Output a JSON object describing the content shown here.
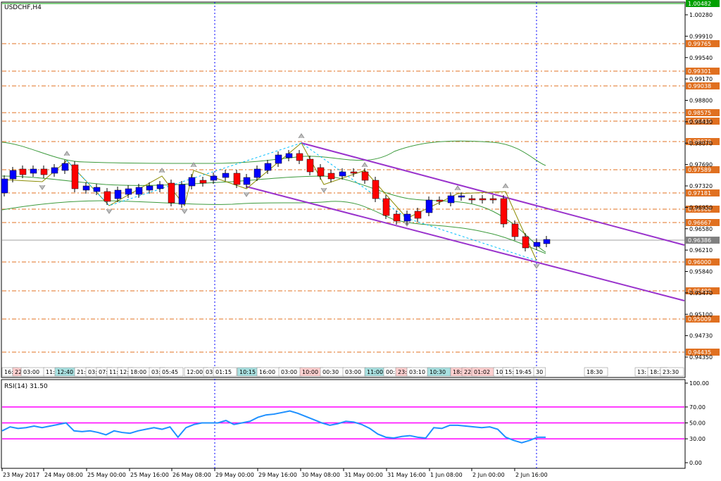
{
  "window": {
    "title": "USDCHF,H4"
  },
  "colors": {
    "accent": "#0000ff",
    "bull_body": "#0000ff",
    "bear_body": "#ff0000",
    "support_resistance": "#e07020",
    "channel": "#9932cc",
    "bands": "#3c9a3c",
    "rsi_line": "#1e90ff",
    "rsi_levels": "#ff00ff",
    "current_price_bg": "#808080",
    "top_price_bg": "#00a000"
  },
  "price_axis": {
    "labels": [
      "1.00280",
      "0.99910",
      "0.99540",
      "0.99170",
      "0.98800",
      "0.98430",
      "0.98070",
      "0.97690",
      "0.97320",
      "0.96950",
      "0.96580",
      "0.96210",
      "0.95840",
      "0.95470",
      "0.95100",
      "0.94730",
      "0.94350"
    ]
  },
  "levels": {
    "top_price": "1.00482",
    "current_price": "0.96386",
    "sr_labels": [
      "0.99765",
      "0.99301",
      "0.99038",
      "0.98575",
      "0.98430",
      "0.98070",
      "0.97589",
      "0.97181",
      "0.96900",
      "0.96667",
      "0.96000",
      "0.95490",
      "0.95009",
      "0.94435"
    ]
  },
  "session_bar": {
    "labels": [
      "16:",
      "22:",
      "03:00",
      "11:",
      "12:40",
      "21:",
      "03:",
      "07:",
      "11:",
      "12:",
      "18:00",
      "03:",
      "05:45",
      "12:00",
      "03:",
      "01:15",
      "10:15",
      "16:00",
      "03:00",
      "10:00",
      "00:30",
      "03:00",
      "11:00",
      "00:30",
      "23:",
      "03:10",
      "10:30",
      "18:",
      "22:",
      "01:02",
      "10:",
      "15:",
      "19:45",
      "30",
      "18:30",
      "13:",
      "18:3",
      "23:30"
    ]
  },
  "time_axis": {
    "labels": [
      "23 May 2017",
      "24 May 08:00",
      "25 May 00:00",
      "25 May 16:00",
      "26 May 08:00",
      "29 May 00:00",
      "29 May 16:00",
      "30 May 08:00",
      "31 May 00:00",
      "31 May 16:00",
      "1 Jun 08:00",
      "2 Jun 00:00",
      "2 Jun 16:00"
    ]
  },
  "rsi": {
    "title": "RSI(14) 31.50",
    "axis_labels": [
      "100.00",
      "70.00",
      "50.00",
      "30.00",
      "0.00"
    ],
    "levels": [
      70,
      50,
      30
    ],
    "values": [
      40,
      45,
      43,
      44,
      46,
      44,
      46,
      48,
      50,
      40,
      39,
      40,
      38,
      35,
      40,
      38,
      37,
      40,
      42,
      44,
      42,
      45,
      32,
      44,
      48,
      50,
      50,
      50,
      53,
      48,
      50,
      52,
      57,
      60,
      61,
      63,
      65,
      62,
      58,
      54,
      50,
      47,
      49,
      52,
      51,
      48,
      43,
      36,
      32,
      31,
      33,
      34,
      32,
      31,
      44,
      43,
      47,
      47,
      46,
      45,
      44,
      45,
      42,
      32,
      28,
      25,
      28,
      32,
      32
    ]
  }
}
